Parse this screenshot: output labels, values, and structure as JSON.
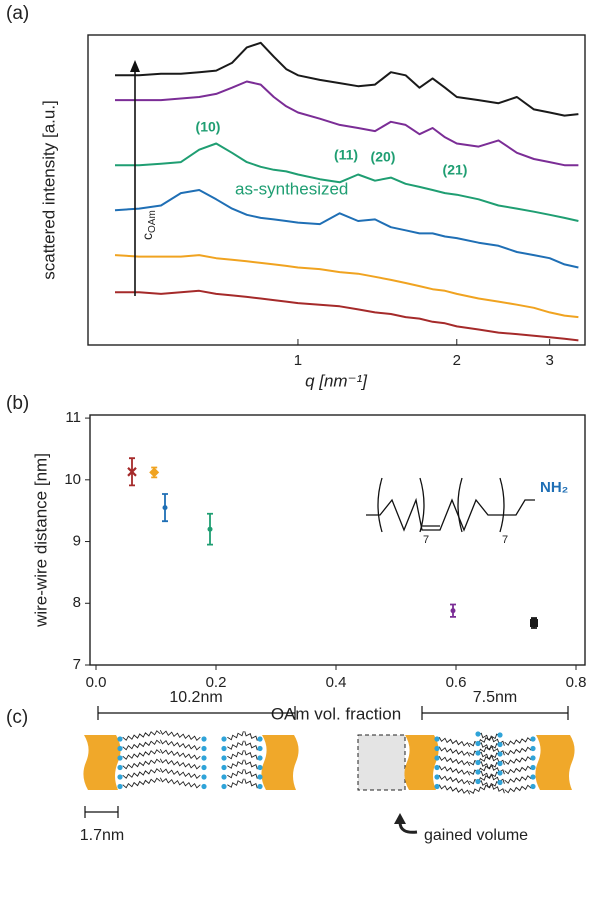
{
  "panel_labels": [
    "(a)",
    "(b)",
    "(c)"
  ],
  "chart_data": [
    {
      "type": "line",
      "xlabel": "q [nm⁻¹]",
      "ylabel": "scattered intensity [a.u.]",
      "xscale": "log",
      "xlim": [
        0.4,
        3.5
      ],
      "ylim": [
        0,
        10
      ],
      "xticks": [
        1,
        2,
        3
      ],
      "x": [
        0.45,
        0.5,
        0.55,
        0.6,
        0.65,
        0.7,
        0.75,
        0.8,
        0.85,
        0.9,
        0.95,
        1.0,
        1.1,
        1.2,
        1.3,
        1.4,
        1.5,
        1.6,
        1.7,
        1.8,
        1.9,
        2.0,
        2.2,
        2.4,
        2.6,
        2.8,
        3.0,
        3.2,
        3.4
      ],
      "series": [
        {
          "color": "#1a1a1a",
          "values": [
            8.7,
            8.7,
            8.75,
            8.75,
            8.8,
            8.85,
            9.1,
            9.6,
            9.75,
            9.3,
            8.9,
            8.7,
            8.55,
            8.45,
            8.35,
            8.4,
            8.8,
            8.7,
            8.3,
            8.6,
            8.3,
            8.0,
            7.9,
            7.8,
            8.0,
            7.6,
            7.5,
            7.4,
            7.45
          ]
        },
        {
          "color": "#7b2d96",
          "values": [
            7.9,
            7.9,
            7.9,
            7.95,
            8.0,
            8.1,
            8.3,
            8.5,
            8.4,
            8.0,
            7.7,
            7.5,
            7.3,
            7.1,
            7.0,
            6.9,
            7.2,
            7.1,
            6.8,
            7.0,
            6.7,
            6.5,
            6.4,
            6.6,
            6.2,
            6.0,
            5.9,
            5.8,
            5.8
          ]
        },
        {
          "color": "#1f9e72",
          "values": [
            5.8,
            5.8,
            5.85,
            5.9,
            6.3,
            6.5,
            6.2,
            5.9,
            5.75,
            5.65,
            5.6,
            5.5,
            5.35,
            5.25,
            5.5,
            5.3,
            5.4,
            5.2,
            5.1,
            5.0,
            4.9,
            4.85,
            4.7,
            4.5,
            4.4,
            4.3,
            4.2,
            4.1,
            4.0
          ]
        },
        {
          "color": "#1f6fb5",
          "values": [
            4.35,
            4.4,
            4.5,
            4.9,
            5.0,
            4.7,
            4.4,
            4.2,
            4.1,
            4.05,
            4.0,
            3.95,
            3.9,
            4.25,
            4.0,
            4.05,
            3.8,
            3.7,
            3.6,
            3.6,
            3.5,
            3.45,
            3.3,
            3.2,
            3.0,
            2.9,
            2.8,
            2.6,
            2.5
          ]
        },
        {
          "color": "#f0a320",
          "values": [
            2.9,
            2.85,
            2.85,
            2.85,
            2.9,
            2.8,
            2.75,
            2.7,
            2.65,
            2.6,
            2.55,
            2.5,
            2.45,
            2.35,
            2.3,
            2.2,
            2.1,
            2.0,
            1.9,
            1.8,
            1.75,
            1.65,
            1.5,
            1.4,
            1.3,
            1.2,
            1.05,
            0.95,
            0.9
          ]
        },
        {
          "color": "#a52a2a",
          "values": [
            1.7,
            1.7,
            1.65,
            1.7,
            1.75,
            1.65,
            1.6,
            1.55,
            1.5,
            1.45,
            1.4,
            1.35,
            1.3,
            1.25,
            1.15,
            1.05,
            1.0,
            0.9,
            0.85,
            0.75,
            0.7,
            0.6,
            0.5,
            0.4,
            0.35,
            0.3,
            0.25,
            0.2,
            0.15
          ]
        }
      ],
      "annotations": [
        "(10)",
        "(11)",
        "(20)",
        "(21)",
        "as-synthesized"
      ],
      "arrow_label": {
        "symbol": "c",
        "subscript": "OAm"
      }
    },
    {
      "type": "scatter",
      "xlabel": "OAm vol. fraction",
      "ylabel": "wire-wire distance [nm]",
      "xlim": [
        -0.01,
        0.815
      ],
      "ylim": [
        7,
        11.05
      ],
      "xticks": [
        {
          "value": 0,
          "label": "0.0"
        },
        0.2,
        0.4,
        0.6,
        0.8
      ],
      "yticks": [
        7,
        8,
        9,
        10,
        11
      ],
      "x": [
        0.06,
        0.097,
        0.115,
        0.19,
        0.595,
        0.73
      ],
      "values": [
        10.13,
        10.12,
        9.55,
        9.2,
        7.88,
        7.68
      ],
      "errors": [
        0.22,
        0.08,
        0.22,
        0.25,
        0.1,
        0.08
      ],
      "colors": [
        "#a52a2a",
        "#f0a320",
        "#1f6fb5",
        "#1f9e72",
        "#7b2d96",
        "#1a1a1a"
      ],
      "markers": [
        "x",
        "diamond",
        "dot",
        "dot",
        "dot",
        "square"
      ],
      "molecule": {
        "group": "NH₂",
        "repeat_left": "7",
        "repeat_right": "7"
      }
    }
  ],
  "diagram": {
    "left_distance": "10.2nm",
    "right_distance": "7.5nm",
    "ligand_length": "1.7nm",
    "gained_volume": "gained volume"
  }
}
